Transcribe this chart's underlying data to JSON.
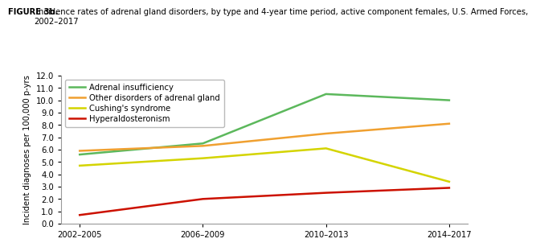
{
  "title_bold": "FIGURE 3b.",
  "title_normal": " Incidence rates of adrenal gland disorders, by type and 4-year time period, active component females, U.S. Armed Forces,\n2002–2017",
  "ylabel": "Incident diagnoses per 100,000 p-yrs",
  "x_labels": [
    "2002–2005",
    "2006–2009",
    "2010–2013",
    "2014–2017"
  ],
  "x_values": [
    0,
    1,
    2,
    3
  ],
  "ylim": [
    0.0,
    12.0
  ],
  "yticks": [
    0.0,
    1.0,
    2.0,
    3.0,
    4.0,
    5.0,
    6.0,
    7.0,
    8.0,
    9.0,
    10.0,
    11.0,
    12.0
  ],
  "series": [
    {
      "label": "Adrenal insufficiency",
      "color": "#5cb85c",
      "values": [
        5.6,
        6.5,
        10.5,
        10.0
      ]
    },
    {
      "label": "Other disorders of adrenal gland",
      "color": "#f0a030",
      "values": [
        5.9,
        6.3,
        7.3,
        8.1
      ]
    },
    {
      "label": "Cushing's syndrome",
      "color": "#d4d400",
      "values": [
        4.7,
        5.3,
        6.1,
        3.4
      ]
    },
    {
      "label": "Hyperaldosteronism",
      "color": "#cc1100",
      "values": [
        0.7,
        2.0,
        2.5,
        2.9
      ]
    }
  ],
  "title_fontsize": 7.2,
  "axis_fontsize": 7.2,
  "tick_fontsize": 7.2,
  "legend_fontsize": 7.2,
  "line_width": 1.8,
  "background_color": "#ffffff"
}
